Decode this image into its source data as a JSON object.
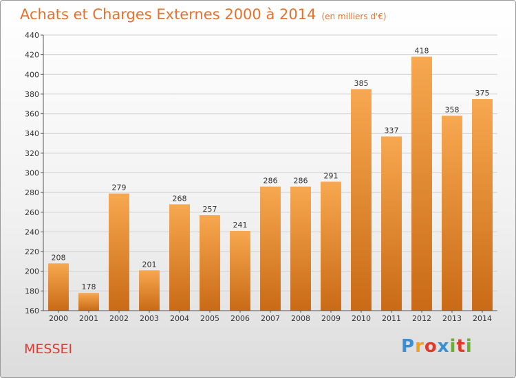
{
  "title": "Achats et Charges Externes 2000 à 2014",
  "subtitle": "(en milliers d'€)",
  "town": "MESSEI",
  "logo": {
    "letters": [
      "P",
      "r",
      "o",
      "x",
      "i",
      "t",
      "i"
    ],
    "colors": [
      "#3a8fd4",
      "#f0a020",
      "#e03a2a",
      "#3a8fd4",
      "#6ab030",
      "#e03a2a",
      "#6ab030"
    ]
  },
  "colors": {
    "bar": "#f0962e",
    "bar_dark": "#c86a14",
    "title": "#e8702a",
    "town": "#e0392f"
  },
  "chart_data": {
    "type": "bar",
    "categories": [
      "2000",
      "2001",
      "2002",
      "2003",
      "2004",
      "2005",
      "2006",
      "2007",
      "2008",
      "2009",
      "2010",
      "2011",
      "2012",
      "2013",
      "2014"
    ],
    "values": [
      208,
      178,
      279,
      201,
      268,
      257,
      241,
      286,
      286,
      291,
      385,
      337,
      418,
      358,
      375
    ],
    "ylim": [
      160,
      440
    ],
    "yticks": [
      160,
      180,
      200,
      220,
      240,
      260,
      280,
      300,
      320,
      340,
      360,
      380,
      400,
      420,
      440
    ],
    "grid": true
  }
}
